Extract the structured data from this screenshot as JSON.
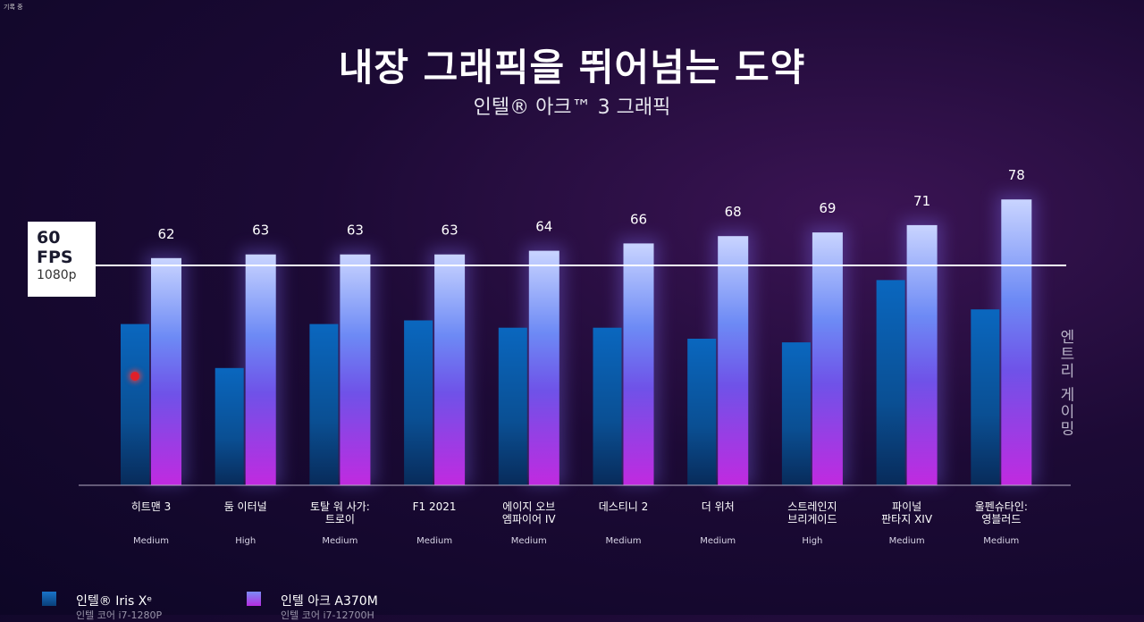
{
  "recording_label": "기록 중",
  "chart_data": {
    "type": "bar",
    "title": "내장 그래픽을 뛰어넘는 도약",
    "subtitle": "인텔® 아크™ 3 그래픽",
    "categories": [
      "히트맨 3",
      "둠 이터널",
      "토탈 워 사가:\n트로이",
      "F1 2021",
      "에이지 오브\n엠파이어 IV",
      "데스티니 2",
      "더 위처",
      "스트레인지\n브리게이드",
      "파이널\n판타지 XIV",
      "울펜슈타인:\n영블러드"
    ],
    "settings": [
      "Medium",
      "High",
      "Medium",
      "Medium",
      "Medium",
      "Medium",
      "Medium",
      "High",
      "Medium",
      "Medium"
    ],
    "series": [
      {
        "name": "인텔® Iris Xᵉ",
        "note": "인텔 코어 i7-1280P",
        "values": [
          44,
          32,
          44,
          45,
          43,
          43,
          40,
          39,
          56,
          48
        ],
        "color": "#1a73c8"
      },
      {
        "name": "인텔 아크 A370M",
        "note": "인텔 코어 i7-12700H",
        "values": [
          62,
          63,
          63,
          63,
          64,
          66,
          68,
          69,
          71,
          78
        ],
        "color": "#9a4fe8"
      }
    ],
    "reference_line": {
      "value": 60,
      "label_value": "60",
      "label_unit": "FPS",
      "label_res": "1080p"
    },
    "ylim": [
      0,
      80
    ],
    "side_note": "엔트리 게이밍"
  }
}
